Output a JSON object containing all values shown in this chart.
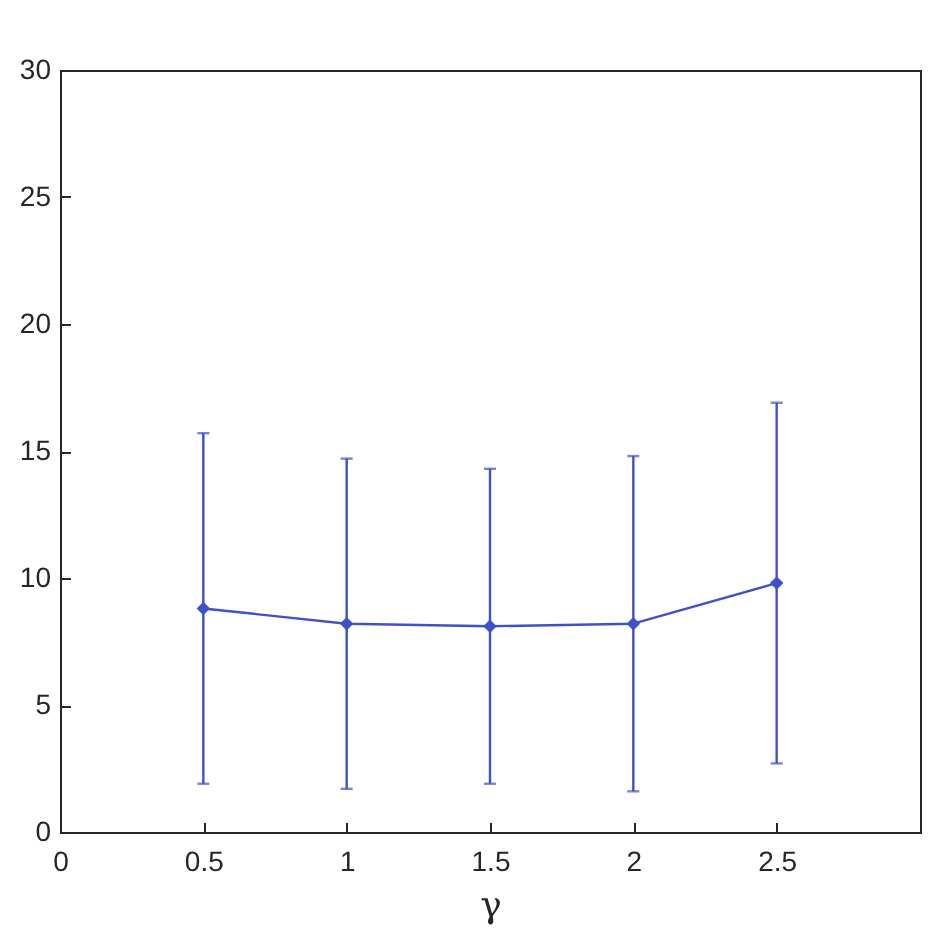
{
  "chart_data": {
    "type": "line",
    "xlabel": "γ",
    "x": [
      0.5,
      1,
      1.5,
      2,
      2.5
    ],
    "series": [
      {
        "color": "#3f51c4",
        "values": [
          8.8,
          8.2,
          8.1,
          8.2,
          9.8
        ],
        "errors": [
          6.9,
          6.5,
          6.2,
          6.6,
          7.1
        ]
      }
    ],
    "xlim": [
      0,
      3
    ],
    "xticks": [
      0,
      0.5,
      1,
      1.5,
      2,
      2.5
    ],
    "ylim": [
      0,
      30
    ],
    "yticks": [
      0,
      5,
      10,
      15,
      20,
      25,
      30
    ],
    "marker": "diamond",
    "line_style": "solid"
  }
}
